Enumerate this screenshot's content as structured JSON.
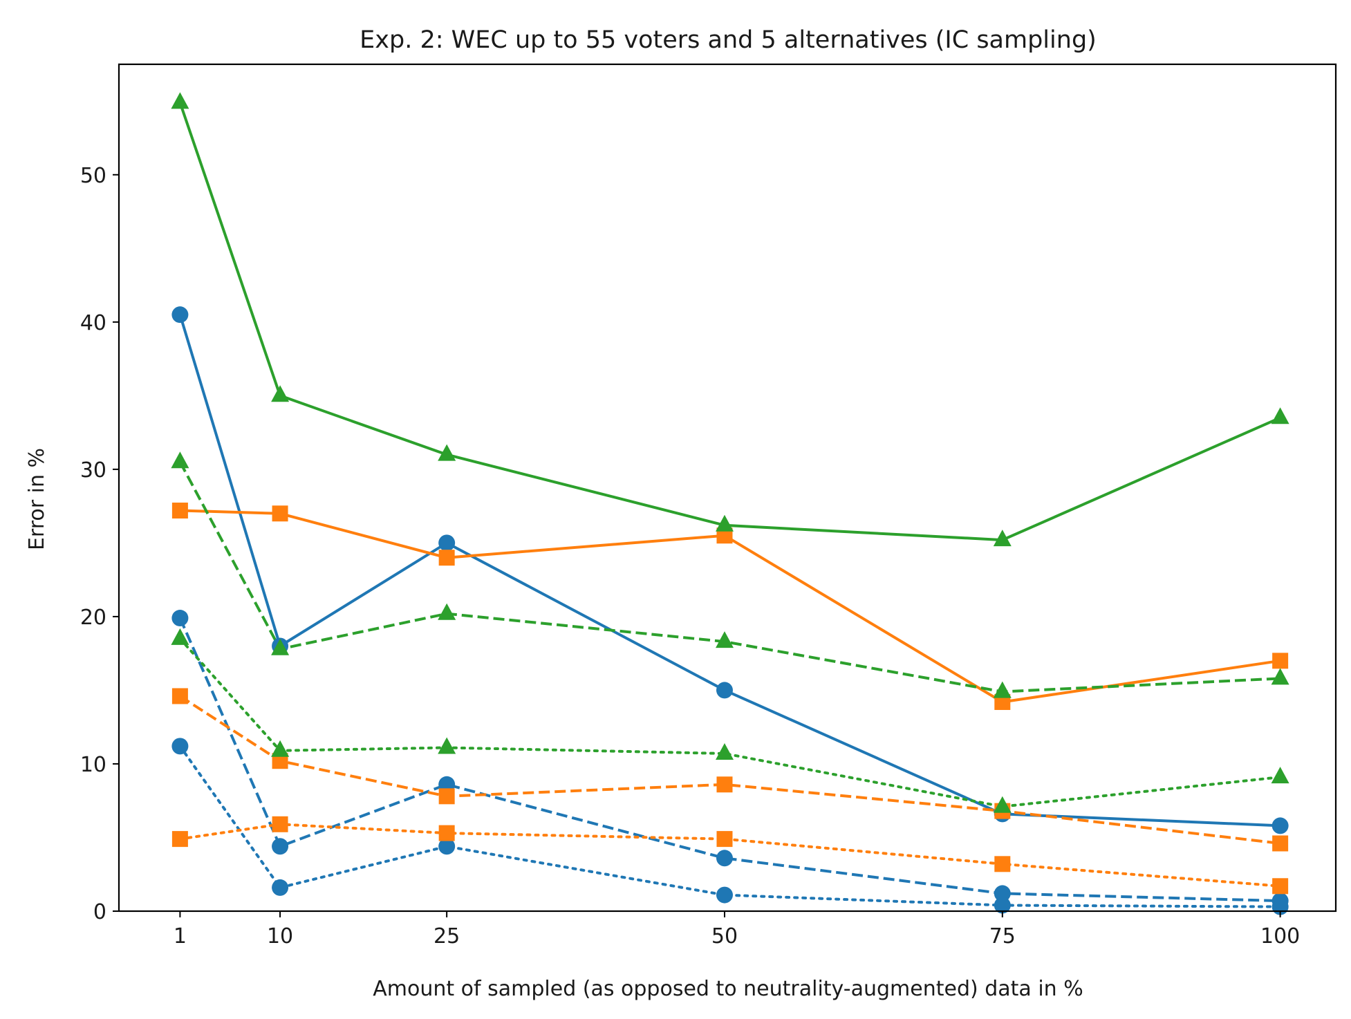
{
  "chart_data": {
    "type": "line",
    "title": "Exp. 2: WEC up to 55 voters and 5 alternatives (IC sampling)",
    "xlabel": "Amount of sampled (as opposed to neutrality-augmented) data in %",
    "ylabel": "Error in %",
    "x": [
      1,
      10,
      25,
      50,
      75,
      100
    ],
    "xticks": [
      1,
      10,
      25,
      50,
      75,
      100
    ],
    "yticks": [
      0,
      10,
      20,
      30,
      40,
      50
    ],
    "xlim": [
      -4.5,
      105
    ],
    "ylim": [
      0,
      57.5
    ],
    "grid": false,
    "legend": "none",
    "series": [
      {
        "name": "blue-solid",
        "color": "#1f77b4",
        "linestyle": "solid",
        "marker": "circle",
        "values": [
          40.5,
          18.0,
          25.0,
          15.0,
          6.6,
          5.8
        ]
      },
      {
        "name": "blue-dashed",
        "color": "#1f77b4",
        "linestyle": "dashed",
        "marker": "circle",
        "values": [
          19.9,
          4.4,
          8.6,
          3.6,
          1.2,
          0.7
        ]
      },
      {
        "name": "blue-dotted",
        "color": "#1f77b4",
        "linestyle": "dotted",
        "marker": "circle",
        "values": [
          11.2,
          1.6,
          4.4,
          1.1,
          0.4,
          0.3
        ]
      },
      {
        "name": "orange-solid",
        "color": "#ff7f0e",
        "linestyle": "solid",
        "marker": "square",
        "values": [
          27.2,
          27.0,
          24.0,
          25.5,
          14.2,
          17.0
        ]
      },
      {
        "name": "orange-dashed",
        "color": "#ff7f0e",
        "linestyle": "dashed",
        "marker": "square",
        "values": [
          14.6,
          10.2,
          7.8,
          8.6,
          6.8,
          4.6
        ]
      },
      {
        "name": "orange-dotted",
        "color": "#ff7f0e",
        "linestyle": "dotted",
        "marker": "square",
        "values": [
          4.9,
          5.9,
          5.3,
          4.9,
          3.2,
          1.7
        ]
      },
      {
        "name": "green-solid",
        "color": "#2ca02c",
        "linestyle": "solid",
        "marker": "triangle",
        "values": [
          54.9,
          35.0,
          31.0,
          26.2,
          25.2,
          33.5
        ]
      },
      {
        "name": "green-dashed",
        "color": "#2ca02c",
        "linestyle": "dashed",
        "marker": "triangle",
        "values": [
          30.5,
          17.8,
          20.2,
          18.3,
          14.9,
          15.8
        ]
      },
      {
        "name": "green-dotted",
        "color": "#2ca02c",
        "linestyle": "dotted",
        "marker": "triangle",
        "values": [
          18.5,
          10.9,
          11.1,
          10.7,
          7.1,
          9.1
        ]
      }
    ]
  }
}
